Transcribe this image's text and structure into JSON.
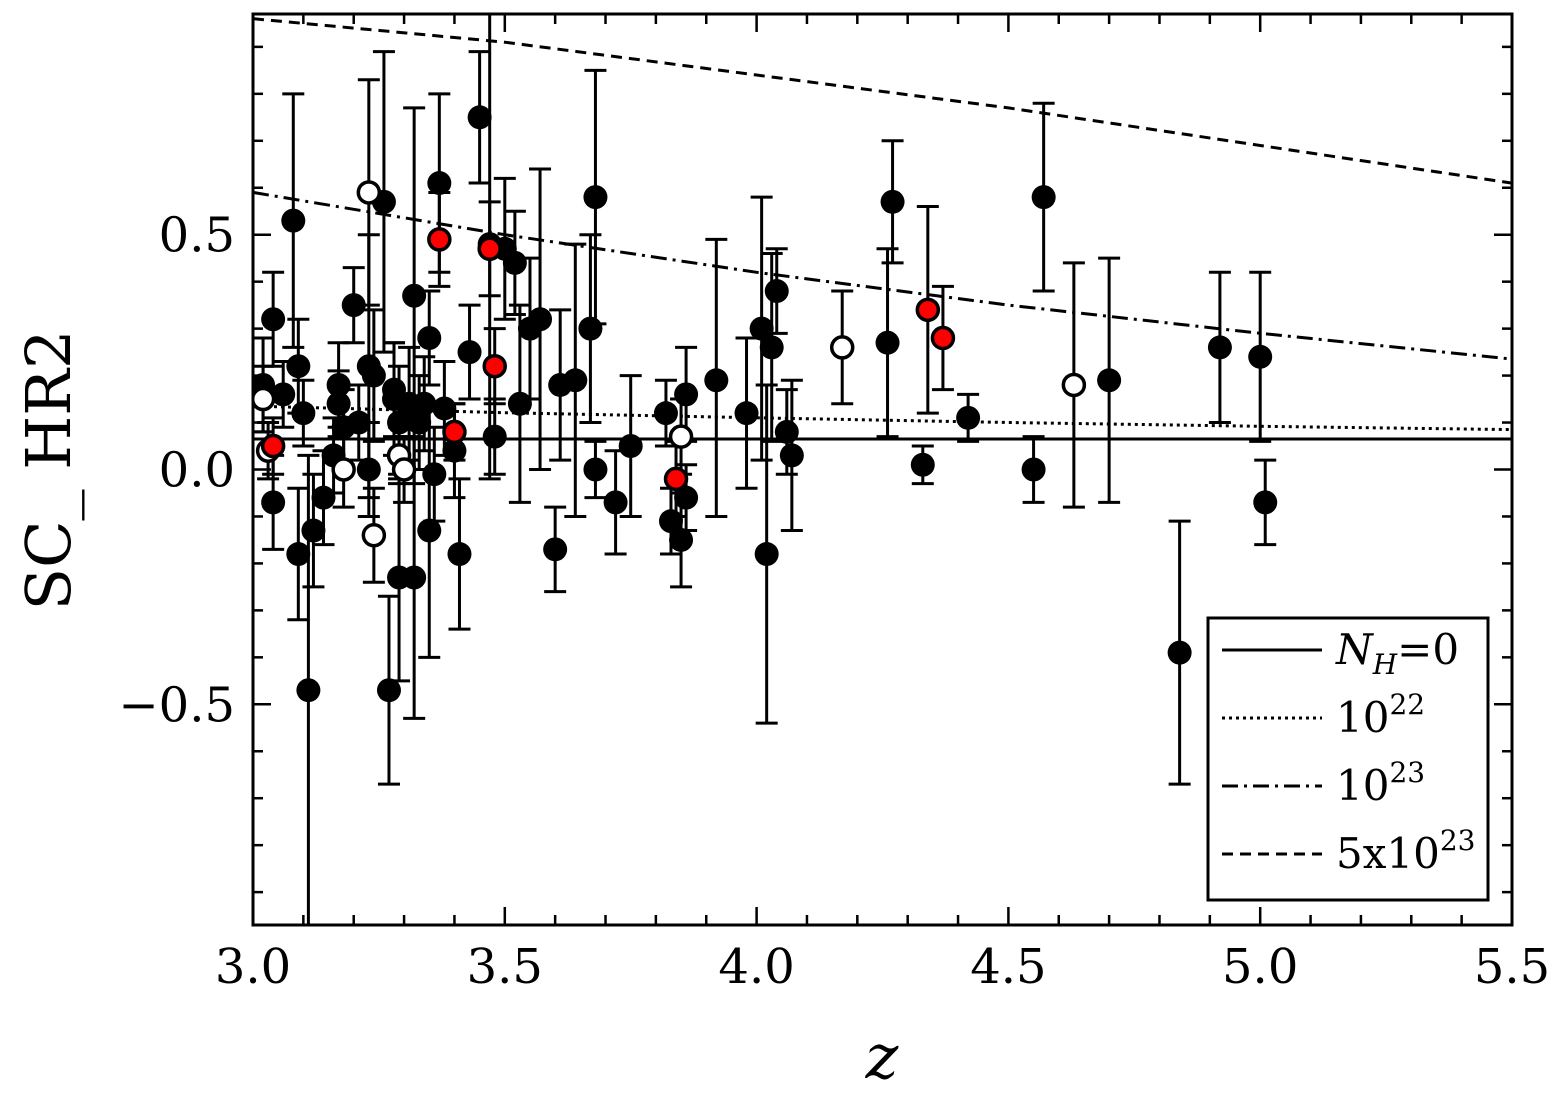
{
  "chart_data": {
    "type": "scatter",
    "xlabel": "z",
    "ylabel": "SC_ HR2",
    "xlim": [
      3.0,
      5.5
    ],
    "ylim": [
      -0.97,
      0.97
    ],
    "x_ticks": [
      "3.0",
      "3.5",
      "4.0",
      "4.5",
      "5.0",
      "5.5"
    ],
    "y_ticks": [
      "−0.5",
      "0.0",
      "0.5"
    ],
    "x_tick_values": [
      3.0,
      3.5,
      4.0,
      4.5,
      5.0,
      5.5
    ],
    "y_tick_values": [
      -0.5,
      0.0,
      0.5
    ],
    "grid": false,
    "legend_position": "bottom-right",
    "series": [
      {
        "kind": "points",
        "marker": "filled",
        "color": "#000000",
        "points": [
          {
            "x": 3.02,
            "y": 0.18,
            "lo": 0.08,
            "hi": 0.28
          },
          {
            "x": 3.04,
            "y": 0.32,
            "lo": 0.22,
            "hi": 0.42
          },
          {
            "x": 3.04,
            "y": -0.07,
            "lo": -0.17,
            "hi": 0.03
          },
          {
            "x": 3.06,
            "y": 0.16,
            "lo": 0.09,
            "hi": 0.23
          },
          {
            "x": 3.08,
            "y": 0.53,
            "lo": 0.26,
            "hi": 0.8
          },
          {
            "x": 3.09,
            "y": 0.22,
            "lo": 0.12,
            "hi": 0.32
          },
          {
            "x": 3.09,
            "y": -0.18,
            "lo": -0.32,
            "hi": -0.04
          },
          {
            "x": 3.1,
            "y": 0.12,
            "lo": 0.05,
            "hi": 0.19
          },
          {
            "x": 3.11,
            "y": -0.47,
            "lo": -0.97,
            "hi": 0.03
          },
          {
            "x": 3.12,
            "y": -0.13,
            "lo": -0.25,
            "hi": -0.01
          },
          {
            "x": 3.14,
            "y": -0.06,
            "lo": -0.16,
            "hi": 0.04
          },
          {
            "x": 3.16,
            "y": 0.03,
            "lo": -0.05,
            "hi": 0.11
          },
          {
            "x": 3.17,
            "y": 0.18,
            "lo": 0.09,
            "hi": 0.27
          },
          {
            "x": 3.17,
            "y": 0.14,
            "lo": 0.07,
            "hi": 0.21
          },
          {
            "x": 3.18,
            "y": 0.09,
            "lo": 0.01,
            "hi": 0.17
          },
          {
            "x": 3.2,
            "y": 0.35,
            "lo": 0.27,
            "hi": 0.43
          },
          {
            "x": 3.21,
            "y": 0.1,
            "lo": 0.02,
            "hi": 0.18
          },
          {
            "x": 3.23,
            "y": 0.22,
            "lo": -0.06,
            "hi": 0.5
          },
          {
            "x": 3.23,
            "y": 0.0,
            "lo": -0.1,
            "hi": 0.1
          },
          {
            "x": 3.24,
            "y": 0.2,
            "lo": 0.06,
            "hi": 0.34
          },
          {
            "x": 3.26,
            "y": 0.57,
            "lo": 0.25,
            "hi": 0.89
          },
          {
            "x": 3.27,
            "y": -0.47,
            "lo": -0.67,
            "hi": -0.27
          },
          {
            "x": 3.28,
            "y": 0.17,
            "lo": 0.07,
            "hi": 0.27
          },
          {
            "x": 3.28,
            "y": 0.15,
            "lo": 0.03,
            "hi": 0.27
          },
          {
            "x": 3.29,
            "y": 0.1,
            "lo": -0.02,
            "hi": 0.22
          },
          {
            "x": 3.29,
            "y": -0.23,
            "lo": -0.45,
            "hi": -0.01
          },
          {
            "x": 3.31,
            "y": 0.14,
            "lo": 0.02,
            "hi": 0.26
          },
          {
            "x": 3.32,
            "y": 0.37,
            "lo": -0.03,
            "hi": 0.77
          },
          {
            "x": 3.32,
            "y": -0.23,
            "lo": -0.53,
            "hi": 0.07
          },
          {
            "x": 3.33,
            "y": 0.1,
            "lo": 0.0,
            "hi": 0.2
          },
          {
            "x": 3.34,
            "y": 0.14,
            "lo": 0.04,
            "hi": 0.24
          },
          {
            "x": 3.35,
            "y": -0.13,
            "lo": -0.4,
            "hi": 0.14
          },
          {
            "x": 3.35,
            "y": 0.28,
            "lo": 0.18,
            "hi": 0.38
          },
          {
            "x": 3.36,
            "y": -0.01,
            "lo": -0.11,
            "hi": 0.09
          },
          {
            "x": 3.37,
            "y": 0.61,
            "lo": 0.42,
            "hi": 0.8
          },
          {
            "x": 3.38,
            "y": 0.13,
            "lo": 0.03,
            "hi": 0.23
          },
          {
            "x": 3.4,
            "y": 0.04,
            "lo": -0.06,
            "hi": 0.14
          },
          {
            "x": 3.41,
            "y": -0.18,
            "lo": -0.34,
            "hi": -0.02
          },
          {
            "x": 3.43,
            "y": 0.25,
            "lo": 0.15,
            "hi": 0.35
          },
          {
            "x": 3.45,
            "y": 0.75,
            "lo": 0.61,
            "hi": 0.89
          },
          {
            "x": 3.47,
            "y": 0.48,
            "lo": -0.02,
            "hi": 0.98
          },
          {
            "x": 3.48,
            "y": 0.07,
            "lo": -0.01,
            "hi": 0.15
          },
          {
            "x": 3.5,
            "y": 0.47,
            "lo": 0.32,
            "hi": 0.62
          },
          {
            "x": 3.52,
            "y": 0.44,
            "lo": 0.33,
            "hi": 0.55
          },
          {
            "x": 3.53,
            "y": 0.14,
            "lo": -0.07,
            "hi": 0.35
          },
          {
            "x": 3.55,
            "y": 0.3,
            "lo": 0.15,
            "hi": 0.45
          },
          {
            "x": 3.57,
            "y": 0.32,
            "lo": 0.0,
            "hi": 0.64
          },
          {
            "x": 3.6,
            "y": -0.17,
            "lo": -0.26,
            "hi": -0.08
          },
          {
            "x": 3.61,
            "y": 0.18,
            "lo": 0.02,
            "hi": 0.34
          },
          {
            "x": 3.64,
            "y": 0.19,
            "lo": -0.1,
            "hi": 0.48
          },
          {
            "x": 3.67,
            "y": 0.3,
            "lo": 0.1,
            "hi": 0.5
          },
          {
            "x": 3.68,
            "y": 0.58,
            "lo": 0.31,
            "hi": 0.85
          },
          {
            "x": 3.68,
            "y": 0.0,
            "lo": -0.06,
            "hi": 0.06
          },
          {
            "x": 3.72,
            "y": -0.07,
            "lo": -0.18,
            "hi": 0.04
          },
          {
            "x": 3.75,
            "y": 0.05,
            "lo": -0.1,
            "hi": 0.2
          },
          {
            "x": 3.82,
            "y": 0.12,
            "lo": 0.05,
            "hi": 0.19
          },
          {
            "x": 3.83,
            "y": -0.11,
            "lo": -0.18,
            "hi": -0.04
          },
          {
            "x": 3.85,
            "y": -0.15,
            "lo": -0.25,
            "hi": -0.05
          },
          {
            "x": 3.86,
            "y": 0.16,
            "lo": 0.06,
            "hi": 0.26
          },
          {
            "x": 3.86,
            "y": -0.06,
            "lo": -0.13,
            "hi": 0.01
          },
          {
            "x": 3.92,
            "y": 0.19,
            "lo": -0.1,
            "hi": 0.49
          },
          {
            "x": 3.98,
            "y": 0.12,
            "lo": -0.04,
            "hi": 0.28
          },
          {
            "x": 4.01,
            "y": 0.3,
            "lo": 0.02,
            "hi": 0.58
          },
          {
            "x": 4.02,
            "y": -0.18,
            "lo": -0.54,
            "hi": 0.18
          },
          {
            "x": 4.03,
            "y": 0.26,
            "lo": 0.06,
            "hi": 0.46
          },
          {
            "x": 4.04,
            "y": 0.38,
            "lo": 0.29,
            "hi": 0.47
          },
          {
            "x": 4.06,
            "y": 0.08,
            "lo": -0.01,
            "hi": 0.17
          },
          {
            "x": 4.07,
            "y": 0.03,
            "lo": -0.13,
            "hi": 0.19
          },
          {
            "x": 4.26,
            "y": 0.27,
            "lo": 0.07,
            "hi": 0.47
          },
          {
            "x": 4.27,
            "y": 0.57,
            "lo": 0.44,
            "hi": 0.7
          },
          {
            "x": 4.33,
            "y": 0.01,
            "lo": -0.03,
            "hi": 0.05
          },
          {
            "x": 4.42,
            "y": 0.11,
            "lo": 0.06,
            "hi": 0.16
          },
          {
            "x": 4.55,
            "y": 0.0,
            "lo": -0.07,
            "hi": 0.07
          },
          {
            "x": 4.57,
            "y": 0.58,
            "lo": 0.38,
            "hi": 0.78
          },
          {
            "x": 4.7,
            "y": 0.19,
            "lo": -0.07,
            "hi": 0.45
          },
          {
            "x": 4.84,
            "y": -0.39,
            "lo": -0.67,
            "hi": -0.11
          },
          {
            "x": 4.92,
            "y": 0.26,
            "lo": 0.1,
            "hi": 0.42
          },
          {
            "x": 5.0,
            "y": 0.24,
            "lo": 0.06,
            "hi": 0.42
          },
          {
            "x": 5.01,
            "y": -0.07,
            "lo": -0.16,
            "hi": 0.02
          }
        ]
      },
      {
        "kind": "points",
        "marker": "open",
        "color": "#ffffff",
        "points": [
          {
            "x": 3.02,
            "y": 0.15,
            "lo": 0.08,
            "hi": 0.22
          },
          {
            "x": 3.03,
            "y": 0.04,
            "lo": -0.02,
            "hi": 0.1
          },
          {
            "x": 3.18,
            "y": 0.0,
            "lo": -0.08,
            "hi": 0.08
          },
          {
            "x": 3.23,
            "y": 0.59,
            "lo": 0.35,
            "hi": 0.83
          },
          {
            "x": 3.24,
            "y": -0.14,
            "lo": -0.24,
            "hi": -0.04
          },
          {
            "x": 3.29,
            "y": 0.03,
            "lo": -0.03,
            "hi": 0.09
          },
          {
            "x": 3.3,
            "y": 0.0,
            "lo": -0.07,
            "hi": 0.07
          },
          {
            "x": 3.85,
            "y": 0.07,
            "lo": -0.01,
            "hi": 0.15
          },
          {
            "x": 4.17,
            "y": 0.26,
            "lo": 0.14,
            "hi": 0.38
          },
          {
            "x": 4.63,
            "y": 0.18,
            "lo": -0.08,
            "hi": 0.44
          }
        ]
      },
      {
        "kind": "points",
        "marker": "filled",
        "color": "#ff0000",
        "points": [
          {
            "x": 3.04,
            "y": 0.05,
            "lo": -0.01,
            "hi": 0.11
          },
          {
            "x": 3.37,
            "y": 0.49,
            "lo": 0.39,
            "hi": 0.59
          },
          {
            "x": 3.4,
            "y": 0.08,
            "lo": 0.02,
            "hi": 0.14
          },
          {
            "x": 3.47,
            "y": 0.47,
            "lo": 0.37,
            "hi": 0.57
          },
          {
            "x": 3.48,
            "y": 0.22,
            "lo": 0.14,
            "hi": 0.3
          },
          {
            "x": 3.84,
            "y": -0.02,
            "lo": -0.1,
            "hi": 0.06
          },
          {
            "x": 4.34,
            "y": 0.34,
            "lo": 0.12,
            "hi": 0.56
          },
          {
            "x": 4.37,
            "y": 0.28,
            "lo": 0.17,
            "hi": 0.39
          }
        ]
      },
      {
        "kind": "line",
        "style": "solid",
        "legend_label": "N_H=0",
        "x": [
          3.0,
          5.5
        ],
        "y": [
          0.065,
          0.065
        ]
      },
      {
        "kind": "line",
        "style": "dotted",
        "legend_label": "10^22",
        "x": [
          3.0,
          3.5,
          4.0,
          4.5,
          5.0,
          5.5
        ],
        "y": [
          0.135,
          0.121,
          0.11,
          0.1,
          0.092,
          0.085
        ]
      },
      {
        "kind": "line",
        "style": "dashdot",
        "legend_label": "10^23",
        "x": [
          3.0,
          3.5,
          4.0,
          4.5,
          5.0,
          5.5
        ],
        "y": [
          0.59,
          0.5,
          0.42,
          0.35,
          0.29,
          0.235
        ]
      },
      {
        "kind": "line",
        "style": "dashed",
        "legend_label": "5x10^23",
        "x": [
          3.0,
          3.5,
          4.0,
          4.5,
          5.0,
          5.5
        ],
        "y": [
          0.96,
          0.91,
          0.84,
          0.77,
          0.69,
          0.61
        ]
      }
    ],
    "legend": [
      {
        "base": "N",
        "sub": "H",
        "rest": "=0",
        "style": "solid"
      },
      {
        "base": "10",
        "sup": "22",
        "style": "dotted"
      },
      {
        "base": "10",
        "sup": "23",
        "style": "dashdot"
      },
      {
        "base": "5x10",
        "sup": "23",
        "style": "dashed"
      }
    ]
  }
}
